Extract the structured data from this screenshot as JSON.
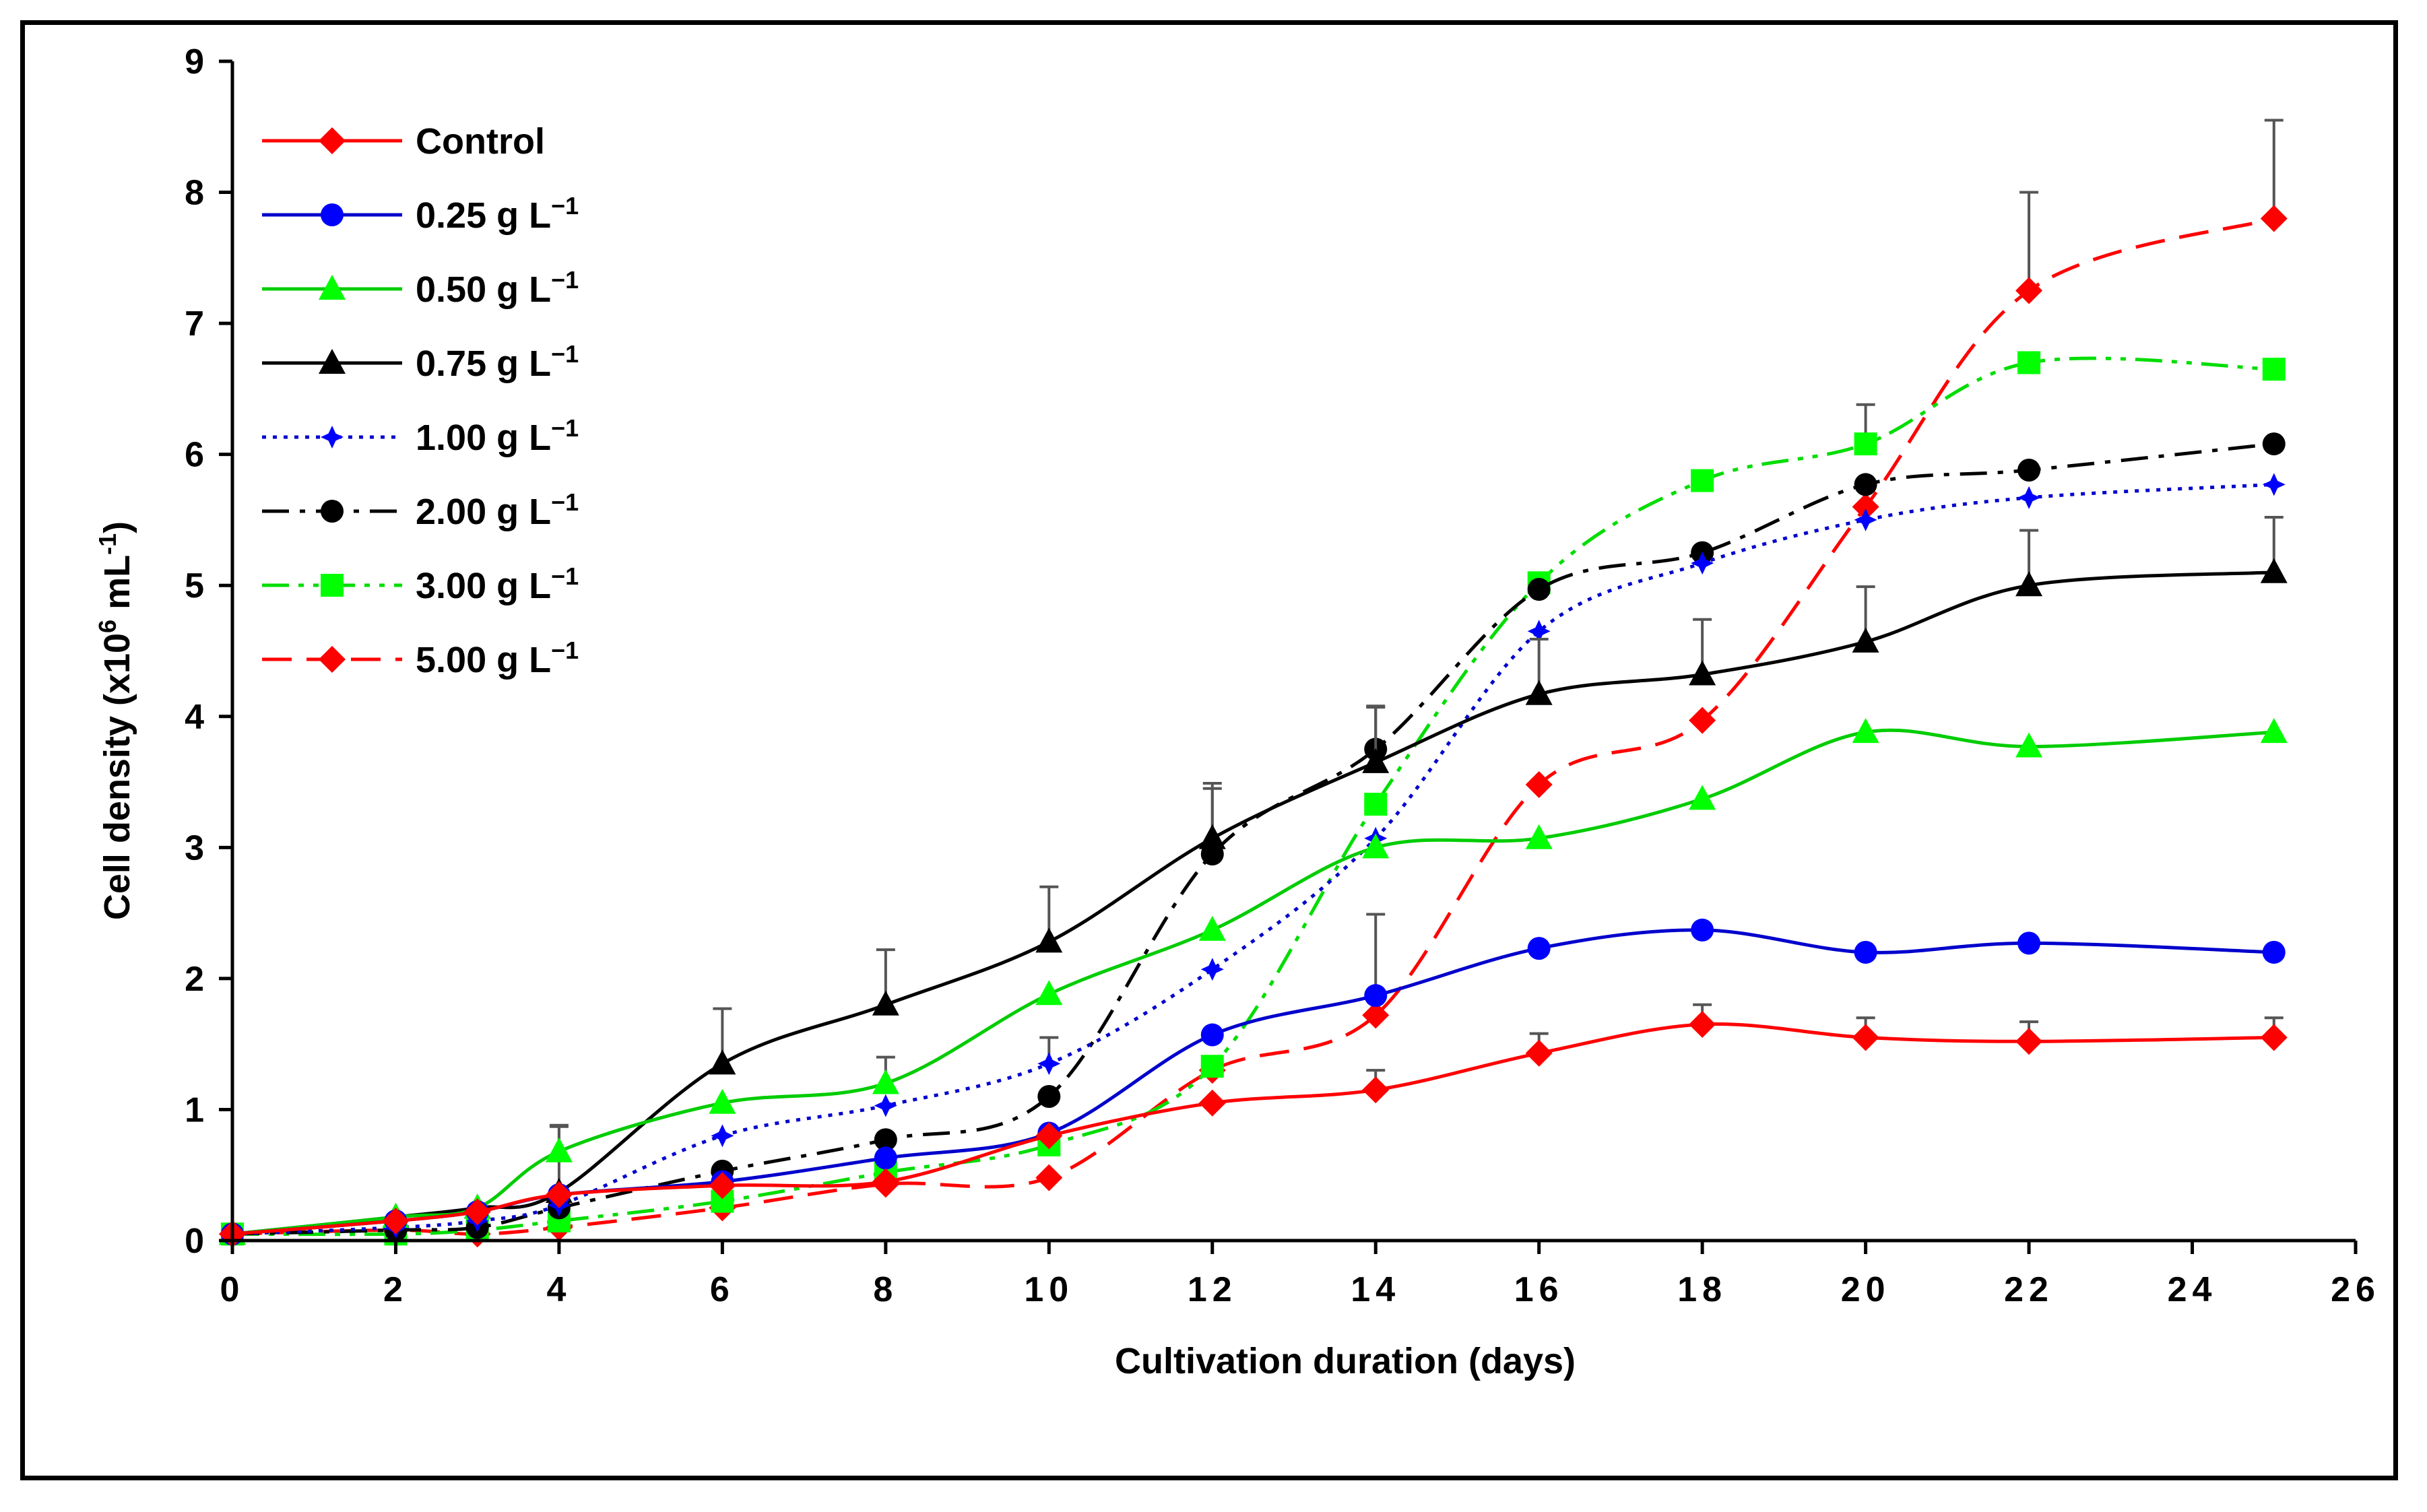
{
  "chart_data": {
    "type": "line",
    "title": "",
    "xlabel": "Cultivation duration (days)",
    "ylabel_parts": {
      "prefix": "Cell density (x10",
      "exp": "6",
      "mid": " mL",
      "neg": "-1",
      "suffix": ")"
    },
    "xlim": [
      0,
      26
    ],
    "ylim": [
      0,
      9
    ],
    "xticks": [
      0,
      2,
      4,
      6,
      8,
      10,
      12,
      14,
      16,
      18,
      20,
      22,
      24,
      26
    ],
    "yticks": [
      0,
      1,
      2,
      3,
      4,
      5,
      6,
      7,
      8,
      9
    ],
    "grid": false,
    "legend_position": "top-left",
    "x": [
      0,
      2,
      3,
      4,
      6,
      8,
      10,
      12,
      14,
      16,
      18,
      20,
      22,
      25
    ],
    "series": [
      {
        "name": "Control",
        "unit": "",
        "color": "#ff0000",
        "dash": "solid",
        "marker": "diamond",
        "marker_color": "#ff0000",
        "values": [
          0.05,
          0.15,
          0.22,
          0.35,
          0.42,
          0.45,
          0.8,
          1.05,
          1.15,
          1.43,
          1.65,
          1.55,
          1.52,
          1.55
        ],
        "error": [
          0,
          0,
          0,
          0,
          0,
          0,
          0,
          0,
          0.15,
          0.15,
          0.15,
          0.15,
          0.15,
          0.15
        ]
      },
      {
        "name": "0.25 g L",
        "unit": "−1",
        "color": "#0000cc",
        "dash": "solid",
        "marker": "circle",
        "marker_color": "#0000ff",
        "values": [
          0.05,
          0.15,
          0.22,
          0.35,
          0.45,
          0.63,
          0.82,
          1.57,
          1.87,
          2.23,
          2.37,
          2.2,
          2.27,
          2.2
        ],
        "error": [
          0,
          0,
          0,
          0,
          0,
          0,
          0,
          0,
          0.62,
          0,
          0,
          0,
          0,
          0
        ]
      },
      {
        "name": "0.50 g L",
        "unit": "−1",
        "color": "#00cc00",
        "dash": "solid",
        "marker": "triangle",
        "marker_color": "#00ff00",
        "values": [
          0.05,
          0.18,
          0.25,
          0.68,
          1.05,
          1.2,
          1.88,
          2.37,
          3.0,
          3.07,
          3.37,
          3.88,
          3.77,
          3.88
        ],
        "error": [
          0,
          0,
          0,
          0.2,
          0,
          0.2,
          0,
          0,
          0,
          0,
          0,
          0,
          0,
          0
        ]
      },
      {
        "name": "0.75 g L",
        "unit": "−1",
        "color": "#000000",
        "dash": "solid",
        "marker": "triangle",
        "marker_color": "#000000",
        "values": [
          0.05,
          0.18,
          0.25,
          0.37,
          1.35,
          1.8,
          2.28,
          3.07,
          3.65,
          4.17,
          4.32,
          4.57,
          5.0,
          5.1
        ],
        "error": [
          0,
          0,
          0,
          0.5,
          0.42,
          0.42,
          0.42,
          0.42,
          0.42,
          0.42,
          0.42,
          0.42,
          0.42,
          0.42
        ]
      },
      {
        "name": "1.00 g L",
        "unit": "−1",
        "color": "#0000cc",
        "dash": "dot",
        "marker": "star",
        "marker_color": "#0000ff",
        "values": [
          0.05,
          0.1,
          0.15,
          0.27,
          0.8,
          1.03,
          1.35,
          2.07,
          3.07,
          4.65,
          5.17,
          5.5,
          5.67,
          5.77
        ],
        "error": [
          0,
          0,
          0,
          0,
          0,
          0,
          0.2,
          0,
          0,
          0,
          0,
          0,
          0,
          0
        ]
      },
      {
        "name": "2.00 g L",
        "unit": "−1",
        "color": "#000000",
        "dash": "dashdot",
        "marker": "circle",
        "marker_color": "#000000",
        "values": [
          0.05,
          0.08,
          0.1,
          0.25,
          0.53,
          0.77,
          1.1,
          2.95,
          3.75,
          4.97,
          5.25,
          5.77,
          5.88,
          6.08
        ],
        "error": [
          0,
          0,
          0,
          0,
          0,
          0,
          0,
          0.5,
          0.33,
          0,
          0,
          0,
          0,
          0
        ]
      },
      {
        "name": "3.00 g L",
        "unit": "−1",
        "color": "#00dd00",
        "dash": "dashdotdot",
        "marker": "square",
        "marker_color": "#00ff00",
        "values": [
          0.05,
          0.05,
          0.08,
          0.15,
          0.3,
          0.52,
          0.73,
          1.33,
          3.33,
          5.02,
          5.8,
          6.08,
          6.7,
          6.65
        ],
        "error": [
          0,
          0,
          0,
          0,
          0,
          0,
          0,
          0,
          0,
          0,
          0,
          0.3,
          0,
          0
        ]
      },
      {
        "name": "5.00 g L",
        "unit": "−1",
        "color": "#ff0000",
        "dash": "dash",
        "marker": "diamond",
        "marker_color": "#ff0000",
        "values": [
          0.05,
          0.08,
          0.05,
          0.1,
          0.25,
          0.43,
          0.48,
          1.3,
          1.72,
          3.48,
          3.97,
          5.6,
          7.25,
          7.8
        ],
        "error": [
          0,
          0,
          0,
          0,
          0,
          0,
          0,
          0,
          0,
          0,
          0,
          0,
          0.75,
          0.75
        ]
      }
    ]
  }
}
